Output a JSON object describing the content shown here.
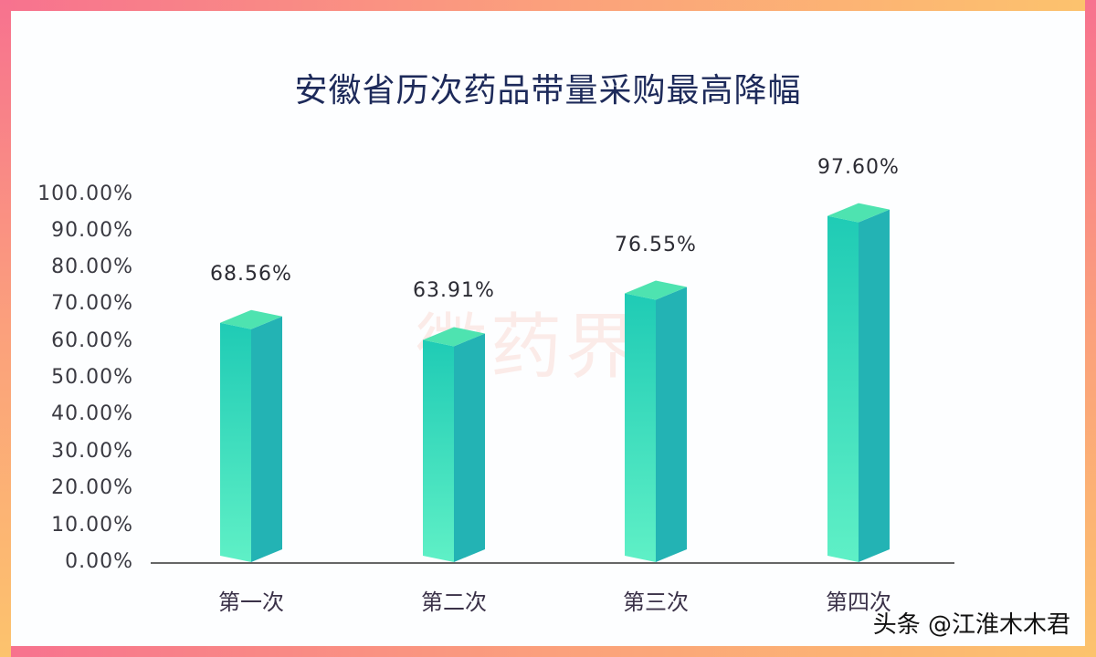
{
  "chart_data": {
    "type": "bar",
    "title": "安徽省历次药品带量采购最高降幅",
    "categories": [
      "第一次",
      "第二次",
      "第三次",
      "第四次"
    ],
    "values": [
      68.56,
      63.91,
      76.55,
      97.6
    ],
    "value_labels": [
      "68.56%",
      "63.91%",
      "76.55%",
      "97.60%"
    ],
    "xlabel": "",
    "ylabel": "",
    "ylim": [
      0,
      100
    ],
    "yticks": [
      "100.00%",
      "90.00%",
      "80.00%",
      "70.00%",
      "60.00%",
      "50.00%",
      "40.00%",
      "30.00%",
      "20.00%",
      "10.00%",
      "0.00%"
    ],
    "grid": false,
    "legend": null,
    "style": "3d-column"
  },
  "colors": {
    "bar_front_top": "#1fcbb5",
    "bar_front_bottom": "#5ff0c6",
    "bar_side": "#23b3b4",
    "bar_top": "#4ee3b0",
    "title": "#1d2a5a",
    "border_start": "#f7728f",
    "border_end": "#fcc36d"
  },
  "watermark": "徽药界",
  "credit": "头条 @江淮木木君"
}
